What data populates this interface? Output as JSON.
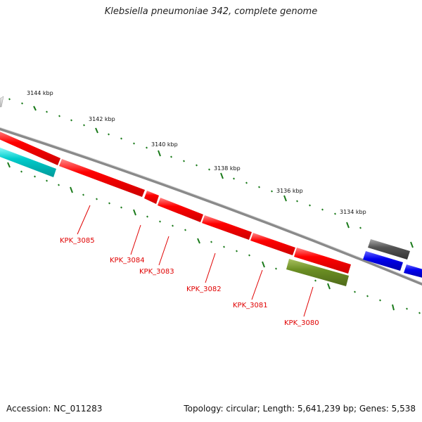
{
  "title": "Klebsiella pneumoniae 342, complete genome",
  "footer": {
    "accession": "Accession: NC_011283",
    "summary": "Topology: circular; Length: 5,641,239 bp; Genes: 5,538"
  },
  "colors": {
    "backbone": "#8a8a8a",
    "gene_highlight": "#ff0000",
    "gene_other_cyan": "#00cccc",
    "gene_other_olive": "#6b8e23",
    "gene_other_blue": "#0000ee",
    "gene_other_gray": "#555555",
    "tick": "#1a7a1a",
    "label": "#e00000"
  },
  "ticks": [
    {
      "label": "3144 kbp"
    },
    {
      "label": "3142 kbp"
    },
    {
      "label": "3140 kbp"
    },
    {
      "label": "3138 kbp"
    },
    {
      "label": "3136 kbp"
    },
    {
      "label": "3134 kbp"
    }
  ],
  "genes": [
    {
      "label": "KPK_3085"
    },
    {
      "label": "KPK_3084"
    },
    {
      "label": "KPK_3083"
    },
    {
      "label": "KPK_3082"
    },
    {
      "label": "KPK_3081"
    },
    {
      "label": "KPK_3080"
    }
  ]
}
